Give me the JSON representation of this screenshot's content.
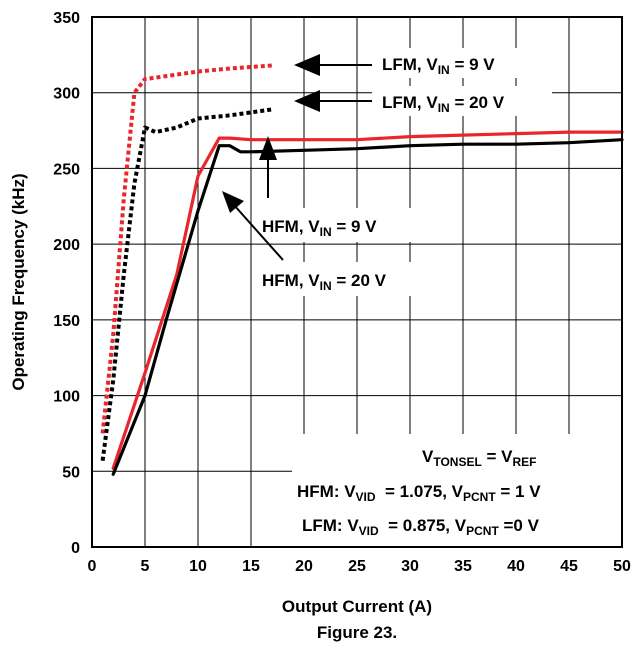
{
  "chart_data": {
    "type": "line",
    "title": "",
    "xlabel": "Output Current (A)",
    "ylabel": "Operating Frequency (kHz)",
    "caption": "Figure 23.",
    "xlim": [
      0,
      50
    ],
    "ylim": [
      0,
      350
    ],
    "xticks": [
      0,
      5,
      10,
      15,
      20,
      25,
      30,
      35,
      40,
      45,
      50
    ],
    "yticks": [
      0,
      50,
      100,
      150,
      200,
      250,
      300,
      350
    ],
    "grid": true,
    "series": [
      {
        "name": "LFM, VIN = 9 V",
        "color": "#e8262b",
        "dashed": true,
        "points": [
          [
            1,
            75
          ],
          [
            2,
            140
          ],
          [
            3,
            230
          ],
          [
            4,
            300
          ],
          [
            5,
            309
          ],
          [
            7,
            311
          ],
          [
            10,
            314
          ],
          [
            13,
            316
          ],
          [
            17,
            318
          ]
        ]
      },
      {
        "name": "LFM, VIN = 20 V",
        "color": "#000000",
        "dashed": true,
        "points": [
          [
            1,
            57
          ],
          [
            2,
            110
          ],
          [
            3,
            180
          ],
          [
            4,
            240
          ],
          [
            5,
            277
          ],
          [
            6,
            274
          ],
          [
            8,
            277
          ],
          [
            10,
            283
          ],
          [
            13,
            285
          ],
          [
            17,
            289
          ]
        ]
      },
      {
        "name": "HFM, VIN = 9 V",
        "color": "#e8262b",
        "dashed": false,
        "points": [
          [
            2,
            52
          ],
          [
            5,
            115
          ],
          [
            8,
            180
          ],
          [
            10,
            245
          ],
          [
            12,
            270
          ],
          [
            13,
            270
          ],
          [
            15,
            269
          ],
          [
            20,
            269
          ],
          [
            25,
            269
          ],
          [
            30,
            271
          ],
          [
            35,
            272
          ],
          [
            40,
            273
          ],
          [
            45,
            274
          ],
          [
            50,
            274
          ]
        ]
      },
      {
        "name": "HFM, VIN = 20 V",
        "color": "#000000",
        "dashed": false,
        "points": [
          [
            2,
            48
          ],
          [
            5,
            100
          ],
          [
            7,
            150
          ],
          [
            10,
            222
          ],
          [
            12,
            265
          ],
          [
            13,
            265
          ],
          [
            14,
            261
          ],
          [
            15,
            261
          ],
          [
            20,
            262
          ],
          [
            25,
            263
          ],
          [
            30,
            265
          ],
          [
            35,
            266
          ],
          [
            40,
            266
          ],
          [
            45,
            267
          ],
          [
            50,
            269
          ]
        ]
      }
    ],
    "annotations": {
      "lfm9": {
        "main": "LFM, V",
        "sub": "IN",
        "rest": " = 9 V"
      },
      "lfm20": {
        "main": "LFM, V",
        "sub": "IN",
        "rest": " = 20 V"
      },
      "hfm9": {
        "main": "HFM, V",
        "sub": "IN",
        "rest": " = 9 V"
      },
      "hfm20": {
        "main": "HFM, V",
        "sub": "IN",
        "rest": " = 20 V"
      }
    },
    "conditions": {
      "line1": {
        "a": "V",
        "a_sub": "TONSEL",
        "b": " = V",
        "b_sub": "REF"
      },
      "line2": {
        "a": "HFM: V",
        "a_sub": "VID",
        "b": "  = 1.075, V",
        "b_sub": "PCNT",
        "c": " = 1 V"
      },
      "line3": {
        "a": "LFM: V",
        "a_sub": "VID",
        "b": "  = 0.875, V",
        "b_sub": "PCNT",
        "c": " =0 V"
      }
    }
  }
}
